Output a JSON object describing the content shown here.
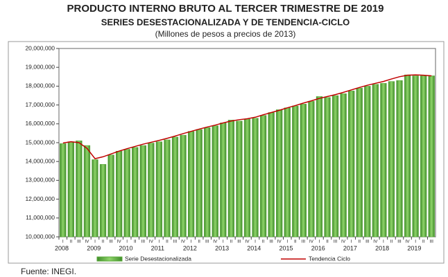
{
  "chart_data": {
    "type": "bar_line",
    "title": "PRODUCTO INTERNO BRUTO AL TERCER TRIMESTRE DE 2019",
    "subtitle": "SERIES DESESTACIONALIZADA Y DE TENDENCIA-CICLO",
    "units_note": "(Millones de pesos a precios de 2013)",
    "source": "Fuente: INEGI.",
    "categories": [
      "I",
      "II",
      "III",
      "IV",
      "I",
      "II",
      "III",
      "IV",
      "I",
      "II",
      "III",
      "IV",
      "I",
      "II",
      "III",
      "IV",
      "I",
      "II",
      "III",
      "IV",
      "I",
      "II",
      "III",
      "IV",
      "I",
      "II",
      "III",
      "IV",
      "I",
      "II",
      "III",
      "IV",
      "I",
      "II",
      "III",
      "IV",
      "I",
      "II",
      "III",
      "IV",
      "I",
      "II",
      "III",
      "IV",
      "I",
      "II",
      "III"
    ],
    "years": [
      "2008",
      "2009",
      "2010",
      "2011",
      "2012",
      "2013",
      "2014",
      "2015",
      "2016",
      "2017",
      "2018",
      "2019"
    ],
    "ylim": [
      10000000,
      20000000
    ],
    "yticks": [
      {
        "value": 10000000,
        "label": "10,000,000"
      },
      {
        "value": 11000000,
        "label": "11,000,000"
      },
      {
        "value": 12000000,
        "label": "12,000,000"
      },
      {
        "value": 13000000,
        "label": "13,000,000"
      },
      {
        "value": 14000000,
        "label": "14,000,000"
      },
      {
        "value": 15000000,
        "label": "15,000,000"
      },
      {
        "value": 16000000,
        "label": "16,000,000"
      },
      {
        "value": 17000000,
        "label": "17,000,000"
      },
      {
        "value": 18000000,
        "label": "18,000,000"
      },
      {
        "value": 19000000,
        "label": "19,000,000"
      },
      {
        "value": 20000000,
        "label": "20,000,000"
      }
    ],
    "series": [
      {
        "name": "Serie Desestacionalizada",
        "color": "#5aaa3a",
        "type": "bar",
        "values": [
          14950000,
          15050000,
          15100000,
          14850000,
          14100000,
          13850000,
          14350000,
          14550000,
          14650000,
          14750000,
          14850000,
          14980000,
          15050000,
          15150000,
          15300000,
          15400000,
          15600000,
          15700000,
          15800000,
          15900000,
          16050000,
          16200000,
          16150000,
          16250000,
          16300000,
          16450000,
          16600000,
          16750000,
          16850000,
          16950000,
          17050000,
          17200000,
          17450000,
          17400000,
          17500000,
          17600000,
          17750000,
          17900000,
          18000000,
          18100000,
          18150000,
          18250000,
          18300000,
          18600000,
          18550000,
          18550000,
          18550000
        ]
      },
      {
        "name": "Tendencia Ciclo",
        "color": "#c00000",
        "type": "line",
        "values": [
          14980000,
          15050000,
          15000000,
          14700000,
          14150000,
          14250000,
          14400000,
          14550000,
          14680000,
          14800000,
          14920000,
          15020000,
          15120000,
          15230000,
          15350000,
          15480000,
          15600000,
          15720000,
          15830000,
          15930000,
          16050000,
          16150000,
          16220000,
          16270000,
          16350000,
          16480000,
          16600000,
          16720000,
          16850000,
          16970000,
          17100000,
          17220000,
          17350000,
          17450000,
          17550000,
          17670000,
          17800000,
          17930000,
          18050000,
          18150000,
          18250000,
          18380000,
          18500000,
          18580000,
          18600000,
          18580000,
          18550000
        ]
      }
    ]
  }
}
